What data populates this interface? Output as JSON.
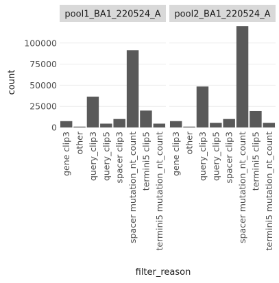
{
  "chart_data": {
    "type": "bar",
    "xlabel": "filter_reason",
    "ylabel": "count",
    "ylim": [
      0,
      125000
    ],
    "yticks": [
      0,
      25000,
      50000,
      75000,
      100000
    ],
    "ytick_labels": [
      "0",
      "25000",
      "50000",
      "75000",
      "100000"
    ],
    "grid": true,
    "bar_color": "#595959",
    "strip_color": "#d9d9d9",
    "grid_color": "#ebebeb",
    "categories": [
      "gene clip3",
      "other",
      "query_clip3",
      "query_clip5",
      "spacer clip3",
      "spacer mutation_nt_count",
      "termini5 clip5",
      "termini5 mutation_nt_count"
    ],
    "panels": [
      {
        "title": "pool1_BA1_220524_A",
        "values": [
          7500,
          1000,
          36500,
          4500,
          10000,
          91500,
          20000,
          4500
        ]
      },
      {
        "title": "pool2_BA1_220524_A",
        "values": [
          7500,
          1000,
          48500,
          5500,
          10000,
          120000,
          19500,
          5500
        ]
      }
    ]
  }
}
